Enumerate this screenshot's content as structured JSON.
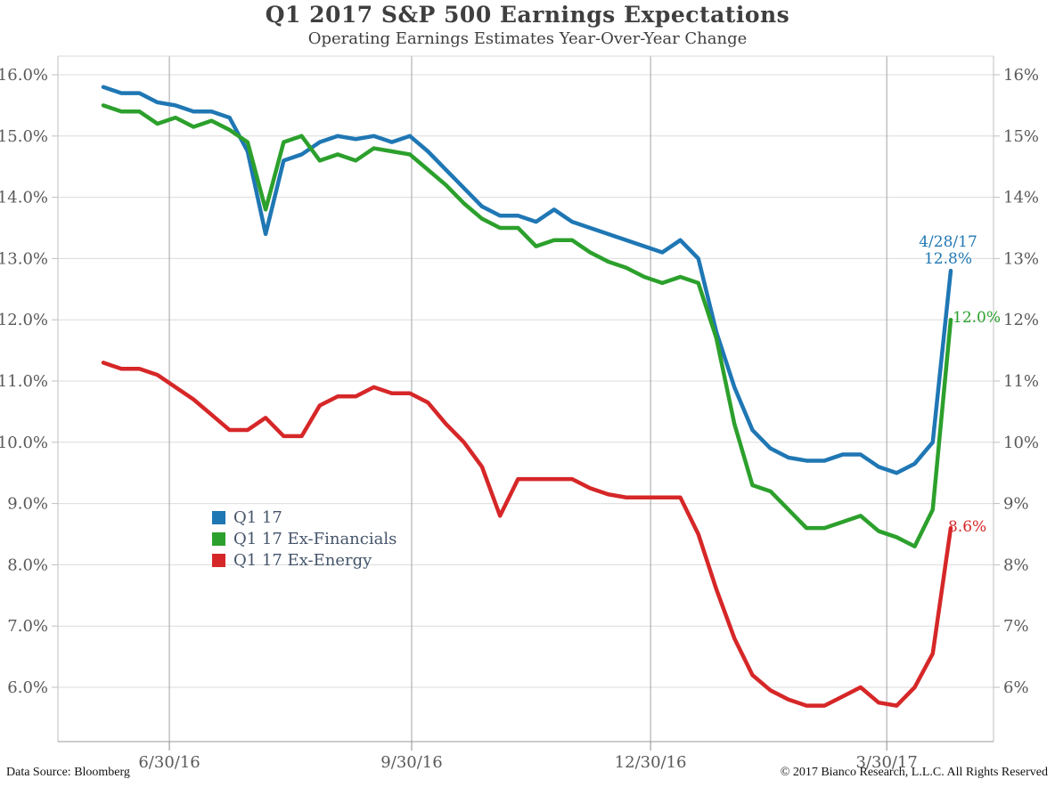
{
  "header": {
    "title": "Q1 2017 S&P 500 Earnings Expectations",
    "subtitle": "Operating Earnings Estimates Year-Over-Year Change"
  },
  "footer": {
    "left": "Data Source: Bloomberg",
    "right": "© 2017 Bianco Research, L.L.C. All Rights Reserved"
  },
  "legend": {
    "items": [
      {
        "label": "Q1 17",
        "color": "#1f77b4"
      },
      {
        "label": "Q1 17 Ex-Financials",
        "color": "#2ca02c"
      },
      {
        "label": "Q1 17 Ex-Energy",
        "color": "#d62728"
      }
    ]
  },
  "annotations": {
    "end_date": "4/28/17",
    "q1_end": "12.8%",
    "ex_financials_end": "12.0%",
    "ex_energy_end": "8.6%"
  },
  "chart_data": {
    "type": "line",
    "title": "Q1 2017 S&P 500 Earnings Expectations",
    "subtitle": "Operating Earnings Estimates Year-Over-Year Change",
    "ylim": [
      5.1,
      16.3
    ],
    "grid": {
      "horizontal": "light",
      "vertical_at_dates": "medium"
    },
    "legend_position": "inside-left-middle",
    "x_axis": {
      "ticks": [
        "6/30/16",
        "9/30/16",
        "12/30/16",
        "3/30/17"
      ],
      "tick_positions": [
        3.66,
        17.1,
        30.35,
        43.45
      ],
      "last_point_label": "4/28/17"
    },
    "y_axis": {
      "unit": "percent",
      "ticks": [
        {
          "value": 16,
          "left": "16.0%",
          "right": "16%"
        },
        {
          "value": 15,
          "left": "15.0%",
          "right": "15%"
        },
        {
          "value": 14,
          "left": "14.0%",
          "right": "14%"
        },
        {
          "value": 13,
          "left": "13.0%",
          "right": "13%"
        },
        {
          "value": 12,
          "left": "12.0%",
          "right": "12%"
        },
        {
          "value": 11,
          "left": "11.0%",
          "right": "11%"
        },
        {
          "value": 10,
          "left": "10.0%",
          "right": "10%"
        },
        {
          "value": 9,
          "left": "9.0%",
          "right": "9%"
        },
        {
          "value": 8,
          "left": "8.0%",
          "right": "8%"
        },
        {
          "value": 7,
          "left": "7.0%",
          "right": "7%"
        },
        {
          "value": 6,
          "left": "6.0%",
          "right": "6%"
        }
      ]
    },
    "series": [
      {
        "name": "Q1 17",
        "color": "#1f77b4",
        "end_label": "12.8%",
        "values": [
          15.8,
          15.7,
          15.7,
          15.55,
          15.5,
          15.4,
          15.4,
          15.3,
          14.75,
          13.4,
          14.6,
          14.7,
          14.9,
          15.0,
          14.95,
          15.0,
          14.9,
          15.0,
          14.75,
          14.45,
          14.15,
          13.85,
          13.7,
          13.7,
          13.6,
          13.8,
          13.6,
          13.5,
          13.4,
          13.3,
          13.2,
          13.1,
          13.3,
          13.0,
          11.8,
          10.9,
          10.2,
          9.9,
          9.75,
          9.7,
          9.7,
          9.8,
          9.8,
          9.6,
          9.5,
          9.65,
          10.0,
          12.8
        ]
      },
      {
        "name": "Q1 17 Ex-Financials",
        "color": "#2ca02c",
        "end_label": "12.0%",
        "values": [
          15.5,
          15.4,
          15.4,
          15.2,
          15.3,
          15.15,
          15.25,
          15.1,
          14.9,
          13.8,
          14.9,
          15.0,
          14.6,
          14.7,
          14.6,
          14.8,
          14.75,
          14.7,
          14.45,
          14.2,
          13.9,
          13.65,
          13.5,
          13.5,
          13.2,
          13.3,
          13.3,
          13.1,
          12.95,
          12.85,
          12.7,
          12.6,
          12.7,
          12.6,
          11.7,
          10.3,
          9.3,
          9.2,
          8.9,
          8.6,
          8.6,
          8.7,
          8.8,
          8.55,
          8.45,
          8.3,
          8.9,
          12.0
        ]
      },
      {
        "name": "Q1 17 Ex-Energy",
        "color": "#d62728",
        "end_label": "8.6%",
        "values": [
          11.3,
          11.2,
          11.2,
          11.1,
          10.9,
          10.7,
          10.45,
          10.2,
          10.2,
          10.4,
          10.1,
          10.1,
          10.6,
          10.75,
          10.75,
          10.9,
          10.8,
          10.8,
          10.65,
          10.3,
          10.0,
          9.6,
          8.8,
          9.4,
          9.4,
          9.4,
          9.4,
          9.25,
          9.15,
          9.1,
          9.1,
          9.1,
          9.1,
          8.5,
          7.6,
          6.8,
          6.2,
          5.95,
          5.8,
          5.7,
          5.7,
          5.85,
          6.0,
          5.75,
          5.7,
          6.0,
          6.55,
          8.6
        ]
      }
    ]
  }
}
